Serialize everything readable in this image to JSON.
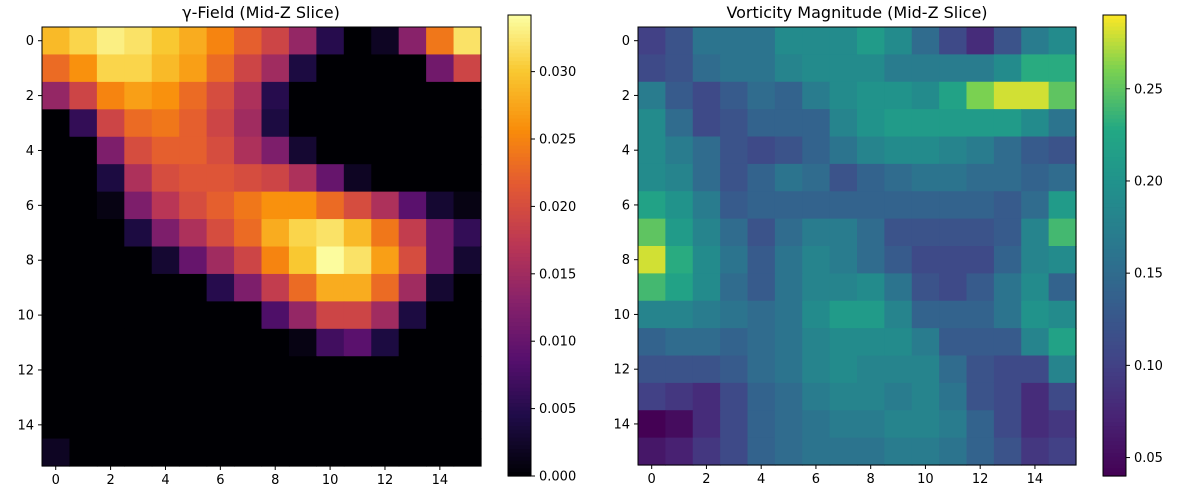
{
  "chart_data": [
    {
      "type": "heatmap",
      "title": "γ-Field (Mid-Z Slice)",
      "colormap": "inferno",
      "x_ticks": [
        "0",
        "2",
        "4",
        "6",
        "8",
        "10",
        "12",
        "14"
      ],
      "y_ticks": [
        "0",
        "2",
        "4",
        "6",
        "8",
        "10",
        "12",
        "14"
      ],
      "colorbar_range": [
        0,
        0.0342
      ],
      "colorbar_ticks": [
        "0.000",
        "0.005",
        "0.010",
        "0.015",
        "0.020",
        "0.025",
        "0.030"
      ],
      "values": [
        [
          0.029,
          0.031,
          0.033,
          0.032,
          0.03,
          0.028,
          0.025,
          0.022,
          0.019,
          0.014,
          0.005,
          0.0,
          0.002,
          0.013,
          0.024,
          0.032
        ],
        [
          0.023,
          0.026,
          0.031,
          0.031,
          0.029,
          0.027,
          0.023,
          0.019,
          0.015,
          0.004,
          0.0,
          0.0,
          0.0,
          0.0,
          0.011,
          0.019
        ],
        [
          0.014,
          0.019,
          0.025,
          0.027,
          0.026,
          0.023,
          0.02,
          0.016,
          0.005,
          0.0,
          0.0,
          0.0,
          0.0,
          0.0,
          0.0,
          0.0
        ],
        [
          0.0,
          0.006,
          0.019,
          0.023,
          0.024,
          0.022,
          0.019,
          0.015,
          0.004,
          0.0,
          0.0,
          0.0,
          0.0,
          0.0,
          0.0,
          0.0
        ],
        [
          0.0,
          0.0,
          0.012,
          0.02,
          0.022,
          0.022,
          0.02,
          0.016,
          0.012,
          0.003,
          0.0,
          0.0,
          0.0,
          0.0,
          0.0,
          0.0
        ],
        [
          0.0,
          0.0,
          0.004,
          0.016,
          0.02,
          0.021,
          0.021,
          0.02,
          0.019,
          0.016,
          0.01,
          0.002,
          0.0,
          0.0,
          0.0,
          0.0
        ],
        [
          0.0,
          0.0,
          0.001,
          0.012,
          0.017,
          0.02,
          0.022,
          0.024,
          0.026,
          0.026,
          0.023,
          0.02,
          0.016,
          0.009,
          0.003,
          0.001
        ],
        [
          0.0,
          0.0,
          0.0,
          0.004,
          0.012,
          0.016,
          0.02,
          0.023,
          0.028,
          0.031,
          0.032,
          0.029,
          0.024,
          0.018,
          0.011,
          0.006
        ],
        [
          0.0,
          0.0,
          0.0,
          0.0,
          0.003,
          0.01,
          0.015,
          0.019,
          0.025,
          0.03,
          0.034,
          0.032,
          0.027,
          0.02,
          0.011,
          0.003
        ],
        [
          0.0,
          0.0,
          0.0,
          0.0,
          0.0,
          0.0,
          0.005,
          0.012,
          0.018,
          0.023,
          0.028,
          0.028,
          0.023,
          0.015,
          0.003,
          0.0
        ],
        [
          0.0,
          0.0,
          0.0,
          0.0,
          0.0,
          0.0,
          0.0,
          0.0,
          0.008,
          0.014,
          0.019,
          0.019,
          0.015,
          0.004,
          0.0,
          0.0
        ],
        [
          0.0,
          0.0,
          0.0,
          0.0,
          0.0,
          0.0,
          0.0,
          0.0,
          0.0,
          0.001,
          0.007,
          0.009,
          0.004,
          0.0,
          0.0,
          0.0
        ],
        [
          0.0,
          0.0,
          0.0,
          0.0,
          0.0,
          0.0,
          0.0,
          0.0,
          0.0,
          0.0,
          0.0,
          0.0,
          0.0,
          0.0,
          0.0,
          0.0
        ],
        [
          0.0,
          0.0,
          0.0,
          0.0,
          0.0,
          0.0,
          0.0,
          0.0,
          0.0,
          0.0,
          0.0,
          0.0,
          0.0,
          0.0,
          0.0,
          0.0
        ],
        [
          0.0,
          0.0,
          0.0,
          0.0,
          0.0,
          0.0,
          0.0,
          0.0,
          0.0,
          0.0,
          0.0,
          0.0,
          0.0,
          0.0,
          0.0,
          0.0
        ],
        [
          0.002,
          0.0,
          0.0,
          0.0,
          0.0,
          0.0,
          0.0,
          0.0,
          0.0,
          0.0,
          0.0,
          0.0,
          0.0,
          0.0,
          0.0,
          0.0
        ]
      ]
    },
    {
      "type": "heatmap",
      "title": "Vorticity Magnitude (Mid-Z Slice)",
      "colormap": "viridis",
      "x_ticks": [
        "0",
        "2",
        "4",
        "6",
        "8",
        "10",
        "12",
        "14"
      ],
      "y_ticks": [
        "0",
        "2",
        "4",
        "6",
        "8",
        "10",
        "12",
        "14"
      ],
      "colorbar_range": [
        0.04,
        0.29
      ],
      "colorbar_ticks": [
        "0.05",
        "0.10",
        "0.15",
        "0.20",
        "0.25"
      ],
      "values": [
        [
          0.1,
          0.12,
          0.16,
          0.16,
          0.16,
          0.19,
          0.19,
          0.19,
          0.21,
          0.19,
          0.15,
          0.11,
          0.08,
          0.12,
          0.17,
          0.19
        ],
        [
          0.11,
          0.12,
          0.15,
          0.16,
          0.16,
          0.18,
          0.19,
          0.19,
          0.19,
          0.17,
          0.17,
          0.17,
          0.17,
          0.19,
          0.23,
          0.23
        ],
        [
          0.17,
          0.13,
          0.11,
          0.13,
          0.15,
          0.14,
          0.17,
          0.19,
          0.2,
          0.2,
          0.19,
          0.22,
          0.26,
          0.28,
          0.28,
          0.25
        ],
        [
          0.19,
          0.15,
          0.11,
          0.12,
          0.14,
          0.14,
          0.14,
          0.18,
          0.2,
          0.21,
          0.21,
          0.21,
          0.21,
          0.21,
          0.19,
          0.16
        ],
        [
          0.19,
          0.17,
          0.15,
          0.12,
          0.11,
          0.12,
          0.14,
          0.16,
          0.18,
          0.19,
          0.19,
          0.18,
          0.17,
          0.15,
          0.13,
          0.12
        ],
        [
          0.19,
          0.18,
          0.15,
          0.12,
          0.14,
          0.16,
          0.15,
          0.12,
          0.14,
          0.15,
          0.16,
          0.16,
          0.15,
          0.15,
          0.14,
          0.15
        ],
        [
          0.22,
          0.2,
          0.17,
          0.13,
          0.14,
          0.14,
          0.14,
          0.14,
          0.14,
          0.14,
          0.14,
          0.14,
          0.14,
          0.13,
          0.15,
          0.21
        ],
        [
          0.25,
          0.21,
          0.18,
          0.15,
          0.12,
          0.15,
          0.17,
          0.17,
          0.15,
          0.12,
          0.12,
          0.12,
          0.12,
          0.13,
          0.18,
          0.24
        ],
        [
          0.28,
          0.23,
          0.19,
          0.16,
          0.13,
          0.16,
          0.18,
          0.17,
          0.15,
          0.13,
          0.11,
          0.11,
          0.11,
          0.14,
          0.18,
          0.19
        ],
        [
          0.24,
          0.22,
          0.19,
          0.15,
          0.13,
          0.16,
          0.18,
          0.18,
          0.19,
          0.16,
          0.12,
          0.11,
          0.13,
          0.16,
          0.19,
          0.14
        ],
        [
          0.18,
          0.18,
          0.17,
          0.16,
          0.15,
          0.16,
          0.19,
          0.21,
          0.21,
          0.18,
          0.14,
          0.14,
          0.14,
          0.16,
          0.2,
          0.19
        ],
        [
          0.14,
          0.15,
          0.15,
          0.14,
          0.15,
          0.16,
          0.18,
          0.19,
          0.19,
          0.19,
          0.17,
          0.13,
          0.13,
          0.13,
          0.18,
          0.22
        ],
        [
          0.12,
          0.12,
          0.12,
          0.13,
          0.15,
          0.16,
          0.18,
          0.19,
          0.18,
          0.18,
          0.18,
          0.15,
          0.12,
          0.11,
          0.11,
          0.18
        ],
        [
          0.1,
          0.09,
          0.08,
          0.11,
          0.14,
          0.15,
          0.17,
          0.18,
          0.18,
          0.17,
          0.18,
          0.16,
          0.12,
          0.11,
          0.08,
          0.11
        ],
        [
          0.04,
          0.05,
          0.08,
          0.11,
          0.14,
          0.15,
          0.16,
          0.17,
          0.17,
          0.18,
          0.18,
          0.17,
          0.14,
          0.11,
          0.08,
          0.09
        ],
        [
          0.06,
          0.07,
          0.09,
          0.11,
          0.14,
          0.15,
          0.16,
          0.16,
          0.16,
          0.17,
          0.17,
          0.16,
          0.14,
          0.12,
          0.09,
          0.1
        ]
      ]
    }
  ]
}
